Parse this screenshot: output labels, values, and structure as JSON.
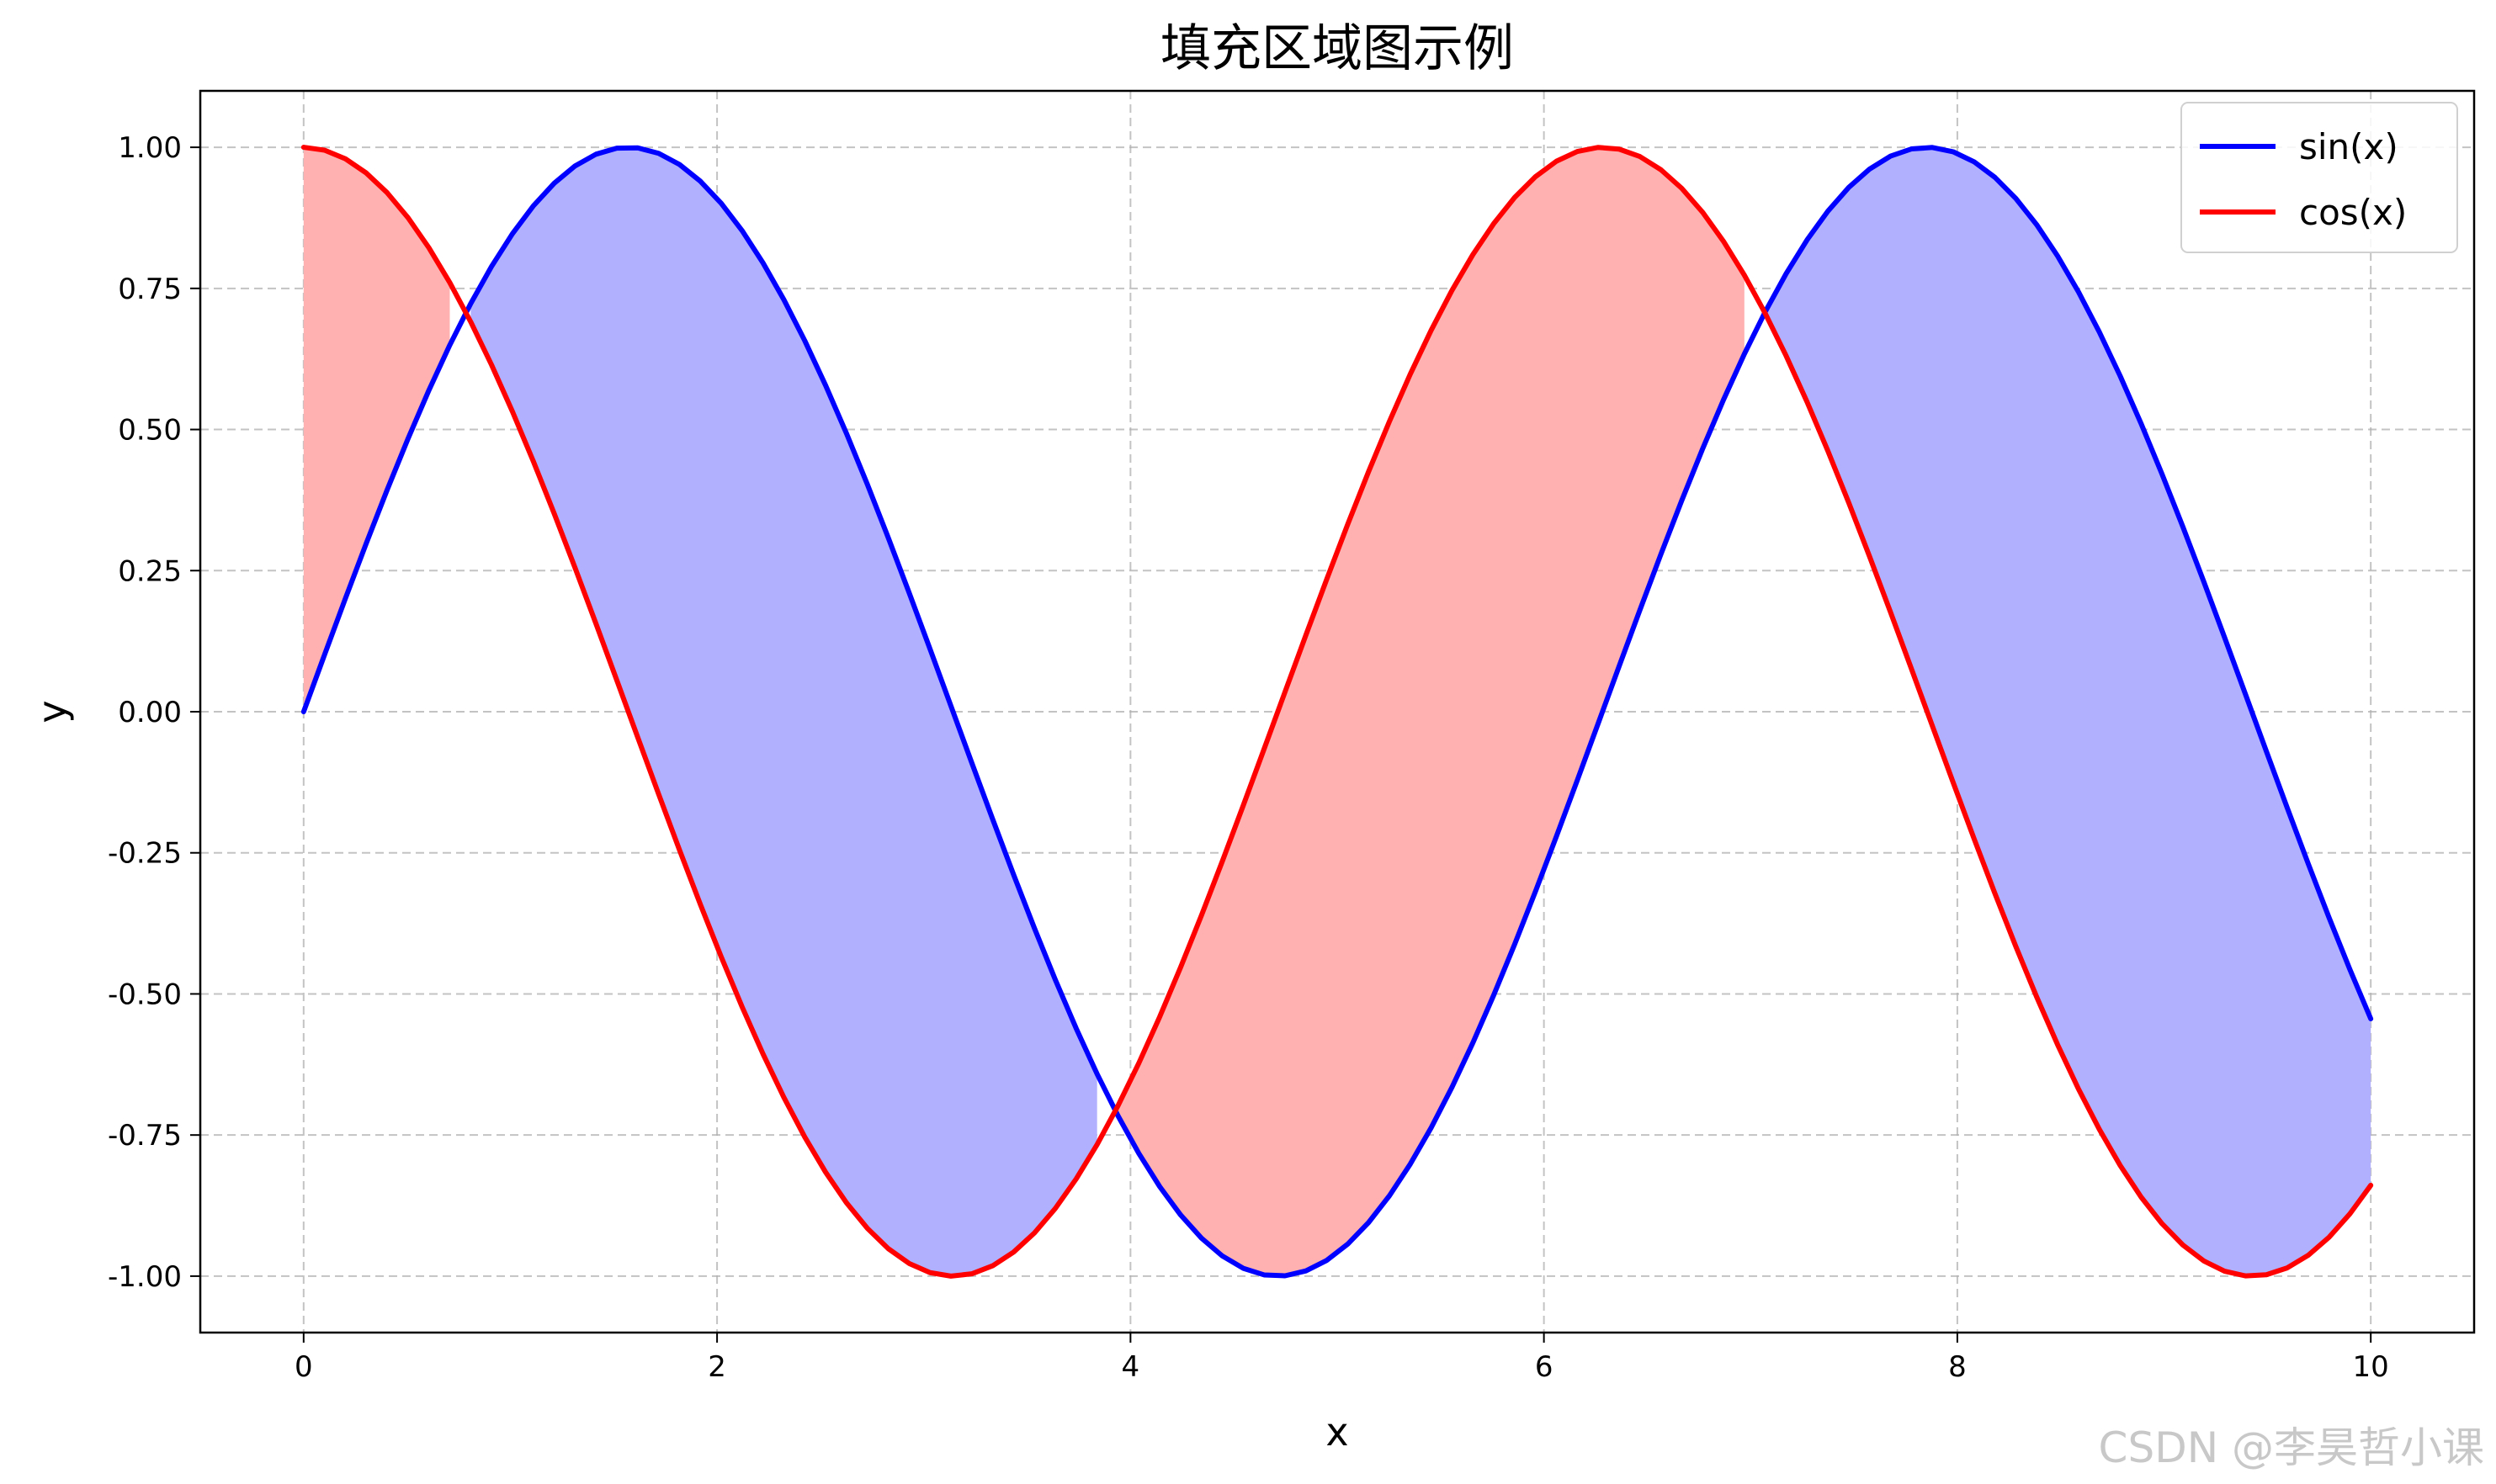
{
  "chart_data": {
    "type": "area",
    "title": "填充区域图示例",
    "xlabel": "x",
    "ylabel": "y",
    "xlim": [
      -0.5,
      10.5
    ],
    "ylim": [
      -1.1,
      1.1
    ],
    "x_ticks": [
      0,
      2,
      4,
      6,
      8,
      10
    ],
    "x_tick_labels": [
      "0",
      "2",
      "4",
      "6",
      "8",
      "10"
    ],
    "y_ticks": [
      1.0,
      0.75,
      0.5,
      0.25,
      0.0,
      -0.25,
      -0.5,
      -0.75,
      -1.0
    ],
    "y_tick_labels": [
      "1.00",
      "0.75",
      "0.50",
      "0.25",
      "0.00",
      "-0.25",
      "-0.50",
      "-0.75",
      "-1.00"
    ],
    "grid": true,
    "legend_position": "top-right",
    "x_range": [
      0,
      10
    ],
    "sample_count": 100,
    "series": [
      {
        "name": "sin(x)",
        "color": "#0000ff",
        "function": "sin",
        "x": [
          0,
          0.5,
          1.0,
          1.5,
          1.5708,
          2.0,
          2.5,
          3.0,
          3.5,
          4.0,
          4.5,
          4.7124,
          5.0,
          5.5,
          6.0,
          6.5,
          7.0,
          7.5,
          7.854,
          8.0,
          8.5,
          9.0,
          9.5,
          10.0
        ],
        "values": [
          0.0,
          0.479,
          0.841,
          0.997,
          1.0,
          0.909,
          0.598,
          0.141,
          -0.351,
          -0.757,
          -0.978,
          -1.0,
          -0.959,
          -0.706,
          -0.279,
          0.215,
          0.657,
          0.938,
          1.0,
          0.989,
          0.798,
          0.412,
          -0.075,
          -0.544
        ]
      },
      {
        "name": "cos(x)",
        "color": "#ff0000",
        "function": "cos",
        "x": [
          0,
          0.5,
          1.0,
          1.5,
          2.0,
          2.5,
          3.0,
          3.1416,
          3.5,
          4.0,
          4.5,
          5.0,
          5.5,
          6.0,
          6.2832,
          6.5,
          7.0,
          7.5,
          8.0,
          8.5,
          9.0,
          9.4248,
          9.5,
          10.0
        ],
        "values": [
          1.0,
          0.878,
          0.54,
          0.071,
          -0.416,
          -0.801,
          -0.99,
          -1.0,
          -0.936,
          -0.654,
          -0.211,
          0.284,
          0.709,
          0.96,
          1.0,
          0.977,
          0.754,
          0.347,
          -0.146,
          -0.602,
          -0.911,
          -1.0,
          -0.997,
          -0.839
        ]
      }
    ],
    "fill_between": {
      "where_sin_above_cos_color": "#b0b0ff",
      "where_cos_above_sin_color": "#ffb0b0"
    }
  },
  "watermark": "CSDN @李昊哲小课"
}
